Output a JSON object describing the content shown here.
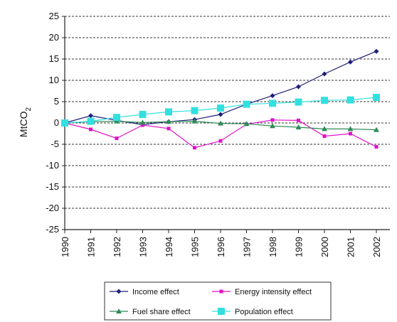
{
  "chart_data": {
    "type": "line",
    "ylabel": "MtCO",
    "ylabel_subscript": "2",
    "ylim": [
      -25,
      25
    ],
    "yticks": [
      "25",
      "20",
      "15",
      "10",
      "5",
      "0",
      "-5",
      "-10",
      "-15",
      "-20",
      "-25"
    ],
    "x": [
      "1990",
      "1991",
      "1992",
      "1993",
      "1994",
      "1995",
      "1996",
      "1997",
      "1998",
      "1999",
      "2000",
      "2001",
      "2002"
    ],
    "grid": "dashed horizontal",
    "legend_position": "bottom",
    "series": [
      {
        "name": "Income effect",
        "color": "#1f1f7a",
        "marker": "diamond",
        "values": [
          0,
          1.7,
          0.6,
          -0.4,
          0.3,
          0.8,
          2.0,
          4.4,
          6.4,
          8.5,
          11.5,
          14.3,
          16.8
        ]
      },
      {
        "name": "Energy intensity effect",
        "color": "#e010c8",
        "marker": "square",
        "values": [
          0,
          -1.5,
          -3.6,
          -0.5,
          -1.3,
          -5.8,
          -4.2,
          -0.3,
          0.7,
          0.6,
          -3.1,
          -2.5,
          -5.6
        ]
      },
      {
        "name": "Fuel share effect",
        "color": "#2e8b57",
        "marker": "triangle",
        "values": [
          0,
          0.3,
          0.4,
          0.1,
          0.3,
          0.4,
          -0.1,
          -0.2,
          -0.7,
          -1.0,
          -1.4,
          -1.4,
          -1.6
        ]
      },
      {
        "name": "Population effect",
        "color": "#33e0e0",
        "marker": "bigsquare",
        "values": [
          0,
          0.4,
          1.3,
          2.0,
          2.6,
          2.9,
          3.5,
          4.4,
          4.6,
          4.9,
          5.3,
          5.4,
          6.0
        ]
      }
    ]
  }
}
